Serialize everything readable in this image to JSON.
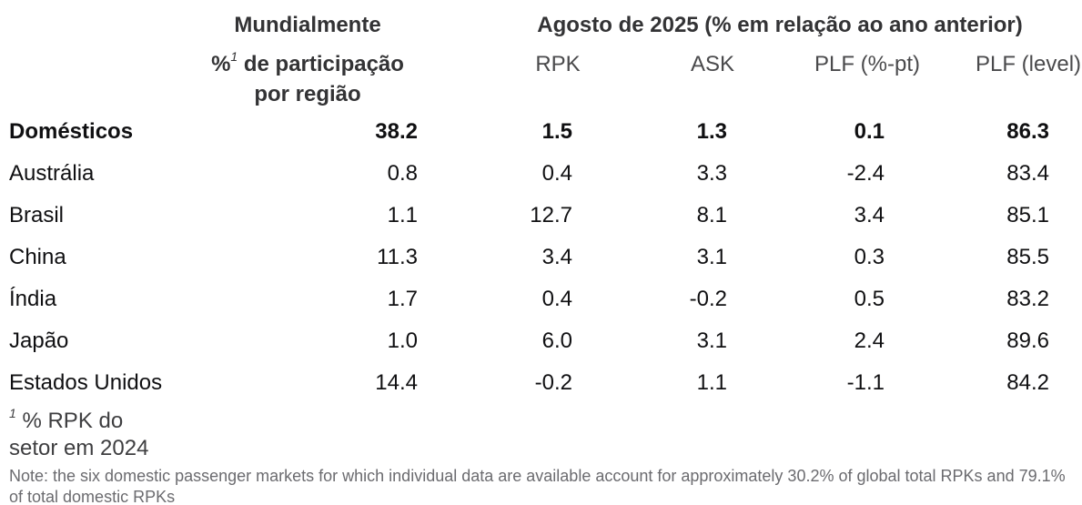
{
  "table": {
    "header": {
      "world": "Mundialmente",
      "period": "Agosto de 2025 (% em relação ao ano anterior)",
      "share_line1_pre": "%",
      "share_sup": "1",
      "share_line1_post": " de participação",
      "share_line2": "por região",
      "metrics": [
        "RPK",
        "ASK",
        "PLF (%-pt)",
        "PLF (level)"
      ]
    },
    "rows": [
      {
        "label": "Domésticos",
        "values": [
          "38.2",
          "1.5",
          "1.3",
          "0.1",
          "86.3"
        ]
      },
      {
        "label": "Austrália",
        "values": [
          "0.8",
          "0.4",
          "3.3",
          "-2.4",
          "83.4"
        ]
      },
      {
        "label": "Brasil",
        "values": [
          "1.1",
          "12.7",
          "8.1",
          "3.4",
          "85.1"
        ]
      },
      {
        "label": "China",
        "values": [
          "11.3",
          "3.4",
          "3.1",
          "0.3",
          "85.5"
        ]
      },
      {
        "label": "Índia",
        "values": [
          "1.7",
          "0.4",
          "-0.2",
          "0.5",
          "83.2"
        ]
      },
      {
        "label": "Japão",
        "values": [
          "1.0",
          "6.0",
          "3.1",
          "2.4",
          "89.6"
        ]
      },
      {
        "label": "Estados Unidos",
        "values": [
          "14.4",
          "-0.2",
          "1.1",
          "-1.1",
          "84.2"
        ]
      }
    ]
  },
  "footnote": {
    "sup": "1",
    "line1": "% RPK do",
    "line2": "setor em 2024"
  },
  "note": {
    "text": "Note: the six domestic passenger markets for which individual data are available account for approximately 30.2% of global total RPKs and 79.1% of total domestic RPKs"
  },
  "chart_data": {
    "type": "table",
    "title": "Agosto de 2025 (% em relação ao ano anterior)",
    "group_title_left": "Mundialmente",
    "columns": [
      "% de participação por região",
      "RPK",
      "ASK",
      "PLF (%-pt)",
      "PLF (level)"
    ],
    "rows": [
      {
        "label": "Domésticos",
        "share": 38.2,
        "rpk": 1.5,
        "ask": 1.3,
        "plf_pt": 0.1,
        "plf_level": 86.3
      },
      {
        "label": "Austrália",
        "share": 0.8,
        "rpk": 0.4,
        "ask": 3.3,
        "plf_pt": -2.4,
        "plf_level": 83.4
      },
      {
        "label": "Brasil",
        "share": 1.1,
        "rpk": 12.7,
        "ask": 8.1,
        "plf_pt": 3.4,
        "plf_level": 85.1
      },
      {
        "label": "China",
        "share": 11.3,
        "rpk": 3.4,
        "ask": 3.1,
        "plf_pt": 0.3,
        "plf_level": 85.5
      },
      {
        "label": "Índia",
        "share": 1.7,
        "rpk": 0.4,
        "ask": -0.2,
        "plf_pt": 0.5,
        "plf_level": 83.2
      },
      {
        "label": "Japão",
        "share": 1.0,
        "rpk": 6.0,
        "ask": 3.1,
        "plf_pt": 2.4,
        "plf_level": 89.6
      },
      {
        "label": "Estados Unidos",
        "share": 14.4,
        "rpk": -0.2,
        "ask": 1.1,
        "plf_pt": -1.1,
        "plf_level": 84.2
      }
    ],
    "footnote": "1 % RPK do setor em 2024",
    "note": "Note: the six domestic passenger markets for which individual data are available account for approximately 30.2% of global total RPKs and 79.1% of total domestic RPKs",
    "layout": {
      "numeric_alignment": "right",
      "header_alignment": "center",
      "gridlines": false
    }
  }
}
